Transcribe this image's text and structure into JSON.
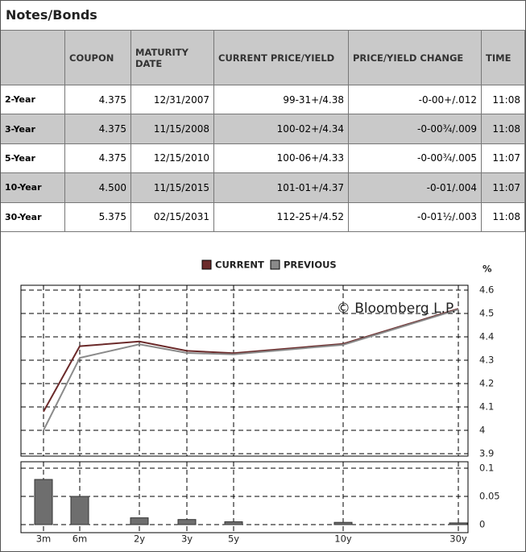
{
  "header": {
    "title": "Notes/Bonds"
  },
  "table": {
    "columns": [
      "COUPON",
      "MATURITY DATE",
      "CURRENT PRICE/YIELD",
      "PRICE/YIELD CHANGE",
      "TIME"
    ],
    "rows": [
      [
        "2-Year",
        "4.375",
        "12/31/2007",
        "99-31+/4.38",
        "-0-00+/.012",
        "11:08"
      ],
      [
        "3-Year",
        "4.375",
        "11/15/2008",
        "100-02+/4.34",
        "-0-00¾/.009",
        "11:08"
      ],
      [
        "5-Year",
        "4.375",
        "12/15/2010",
        "100-06+/4.33",
        "-0-00¾/.005",
        "11:07"
      ],
      [
        "10-Year",
        "4.500",
        "11/15/2015",
        "101-01+/4.37",
        "-0-01/.004",
        "11:07"
      ],
      [
        "30-Year",
        "5.375",
        "02/15/2031",
        "112-25+/4.52",
        "-0-01½/.003",
        "11:08"
      ]
    ]
  },
  "chart_data": [
    {
      "type": "line",
      "y_unit": "%",
      "annotation": "© Bloomberg L.P.",
      "categories": [
        "3m",
        "6m",
        "2y",
        "3y",
        "5y",
        "10y",
        "30y"
      ],
      "series": [
        {
          "name": "CURRENT",
          "color": "#6b2a2a",
          "values": [
            4.08,
            4.36,
            4.38,
            4.34,
            4.33,
            4.37,
            4.52
          ]
        },
        {
          "name": "PREVIOUS",
          "color": "#8a8a8a",
          "values": [
            4.0,
            4.31,
            4.368,
            4.331,
            4.325,
            4.366,
            4.517
          ]
        }
      ],
      "ylim": [
        3.9,
        4.6
      ],
      "yticks": [
        4.6,
        4.5,
        4.4,
        4.3,
        4.2,
        4.1,
        4,
        3.9
      ],
      "grid": true
    },
    {
      "type": "bar",
      "color": "#6e6e6e",
      "values": [
        0.08,
        0.05,
        0.012,
        0.009,
        0.005,
        0.004,
        0.003
      ],
      "ylim": [
        0,
        0.1
      ],
      "yticks": [
        0.1,
        0.05,
        0
      ],
      "grid": true
    }
  ]
}
